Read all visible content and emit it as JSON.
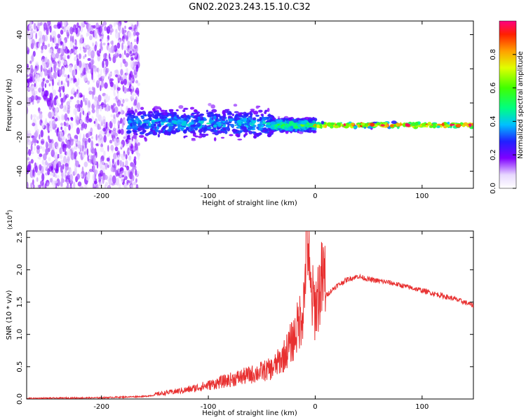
{
  "title": "GN02.2023.243.15.10.C32",
  "chart_data": [
    {
      "type": "heatmap",
      "xlabel": "Height of straight line (km)",
      "ylabel": "Frequency (Hz)",
      "xlim": [
        -270,
        148
      ],
      "ylim": [
        -50,
        48
      ],
      "xticks": [
        -200,
        -100,
        0,
        100
      ],
      "yticks": [
        -40,
        -20,
        0,
        20,
        40
      ],
      "colorbar": {
        "label": "Normalized spectral amplitude",
        "range": [
          0,
          1
        ],
        "ticks": [
          "0.0",
          "0.2",
          "0.4",
          "0.6",
          "0.8"
        ]
      },
      "features": [
        {
          "region": "noise",
          "x_range": [
            -270,
            -165
          ],
          "y_range": [
            -50,
            48
          ],
          "amplitude": 0.1
        },
        {
          "region": "signal band",
          "x_range": [
            -175,
            -40
          ],
          "center_freq": -12,
          "spread_hz": 12,
          "amplitude": 0.3
        },
        {
          "region": "signal band",
          "x_range": [
            -40,
            0
          ],
          "center_freq": -13,
          "spread_hz": 5,
          "amplitude": 0.5
        },
        {
          "region": "signal line",
          "x_range": [
            0,
            148
          ],
          "center_freq": -13,
          "spread_hz": 2,
          "amplitude": 0.9
        }
      ]
    },
    {
      "type": "line",
      "xlabel": "Height of straight line (km)",
      "ylabel": "SNR (10 * v/v)",
      "scale_label": "(x10",
      "scale_exp": "4",
      "scale_close": ")",
      "xlim": [
        -270,
        148
      ],
      "ylim": [
        0,
        2.6
      ],
      "xticks": [
        -200,
        -100,
        0,
        100
      ],
      "yticks": [
        "0.0",
        "0.5",
        "1.0",
        "1.5",
        "2.0",
        "2.5"
      ],
      "ytick_values": [
        0,
        0.5,
        1.0,
        1.5,
        2.0,
        2.5
      ],
      "color": "#e83030",
      "x": [
        -270,
        -200,
        -160,
        -140,
        -120,
        -100,
        -80,
        -60,
        -40,
        -30,
        -20,
        -15,
        -10,
        -8,
        -5,
        0,
        5,
        10,
        20,
        30,
        40,
        50,
        70,
        100,
        130,
        148
      ],
      "y": [
        0.01,
        0.02,
        0.04,
        0.08,
        0.12,
        0.18,
        0.25,
        0.32,
        0.4,
        0.55,
        0.8,
        1.0,
        1.3,
        2.6,
        1.4,
        1.2,
        1.5,
        1.6,
        1.75,
        1.85,
        1.9,
        1.85,
        1.8,
        1.68,
        1.55,
        1.45
      ]
    }
  ]
}
